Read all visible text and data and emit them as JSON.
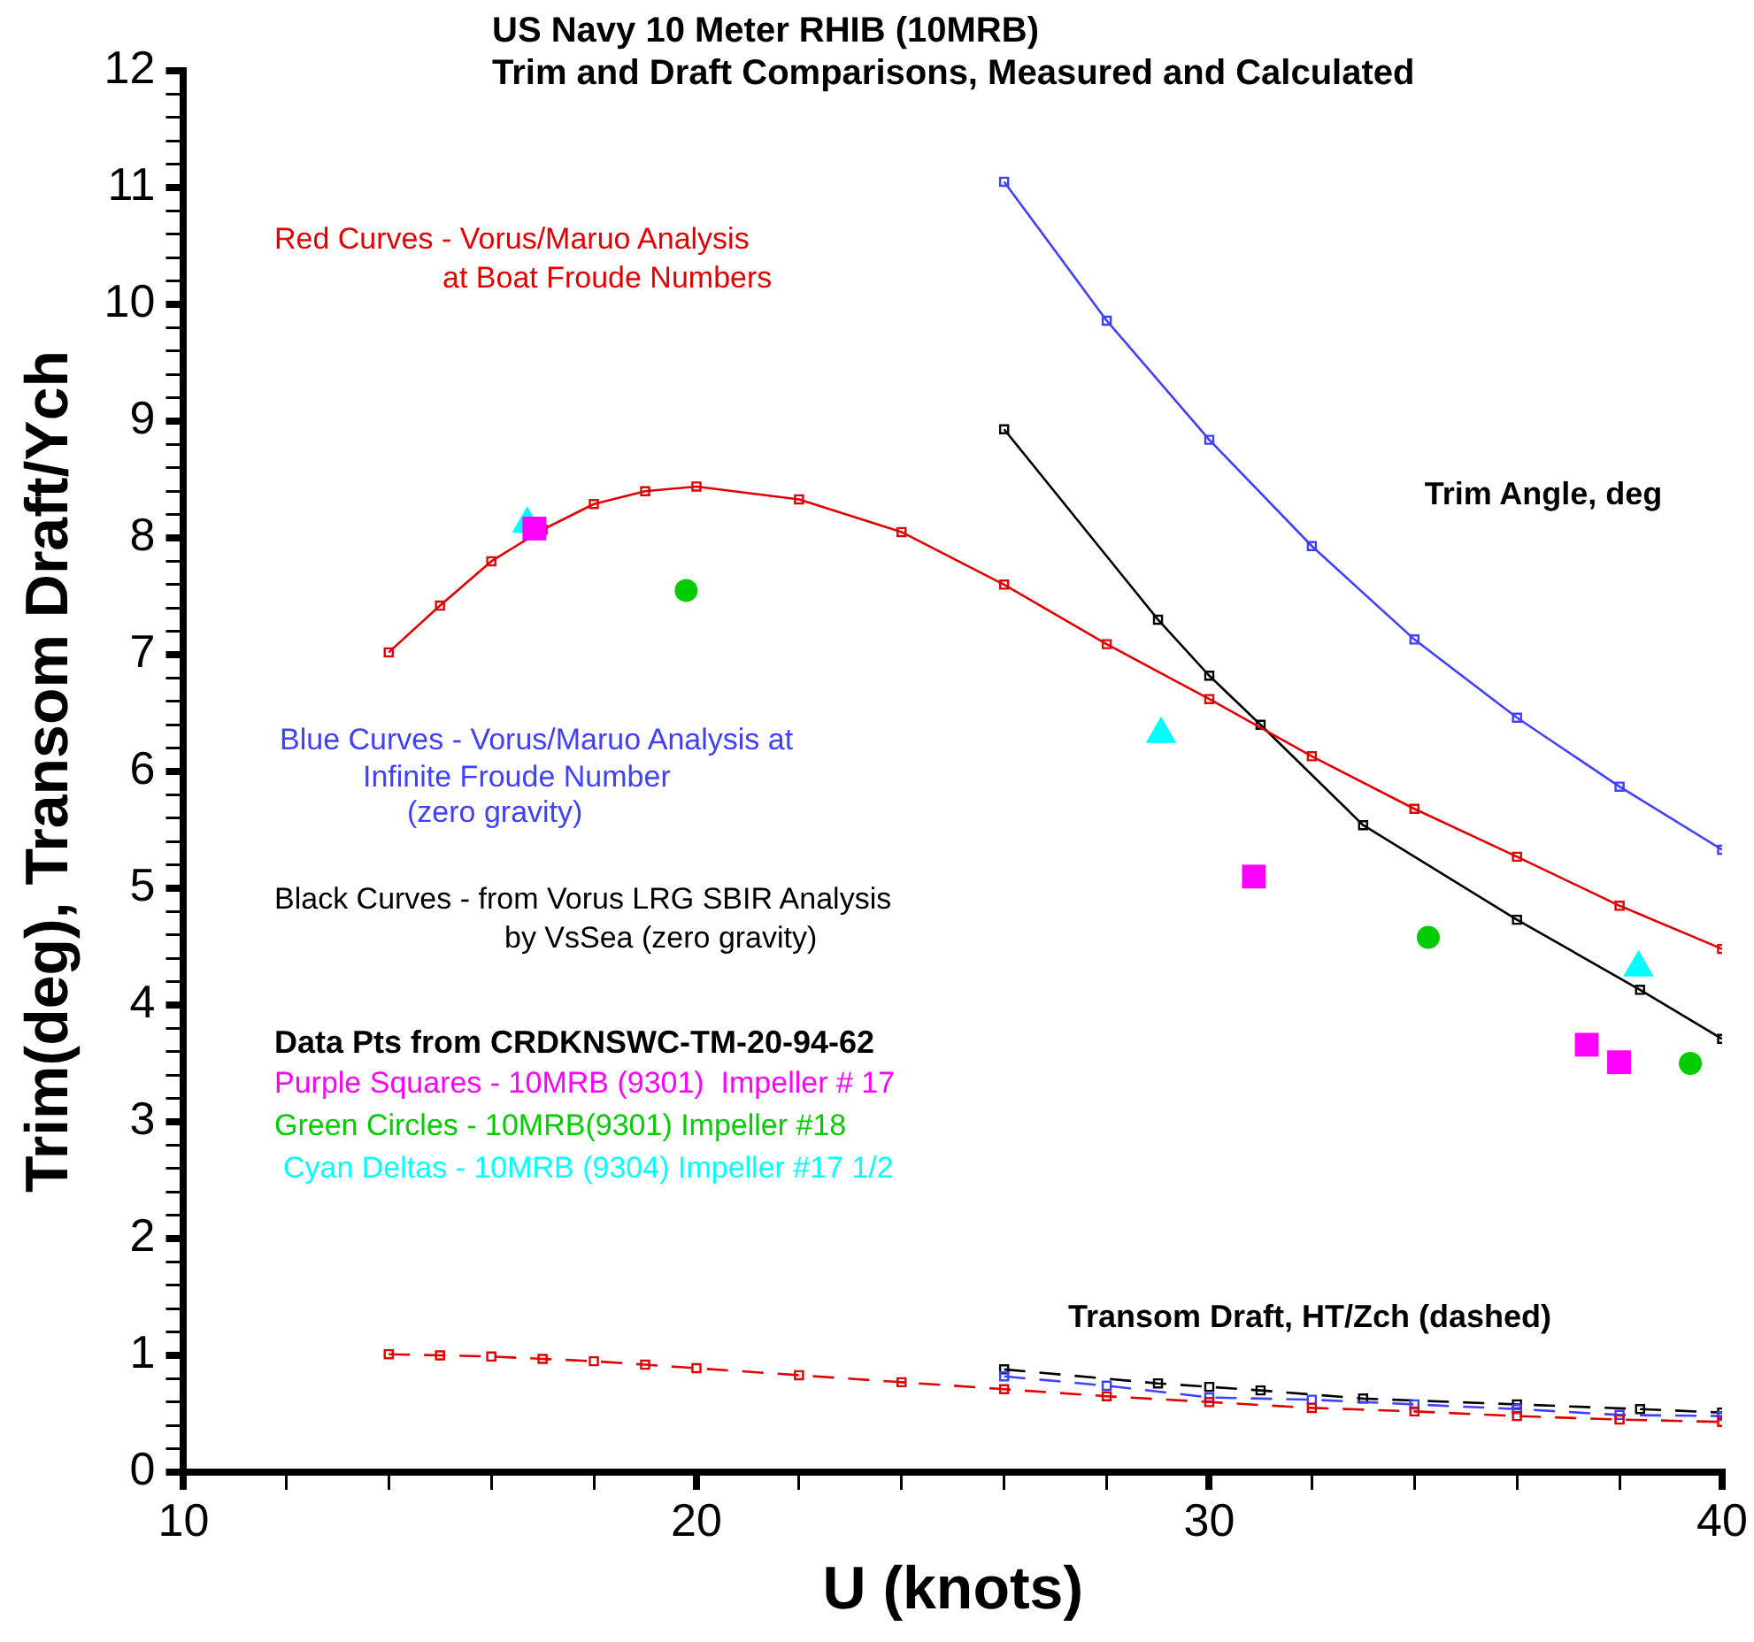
{
  "chart_data": {
    "type": "line",
    "title": "US Navy 10 Meter RHIB (10MRB)",
    "subtitle": "Trim and Draft Comparisons, Measured and Calculated",
    "xlabel": "U (knots)",
    "ylabel": "Trim(deg), Transom Draft/Ych",
    "xlim": [
      10,
      40
    ],
    "xticks": [
      10,
      {
        "value": 12,
        "label": null
      },
      {
        "value": 14,
        "label": null
      },
      {
        "value": 16,
        "label": null
      },
      {
        "value": 18,
        "label": null
      },
      20,
      {
        "value": 22,
        "label": null
      },
      {
        "value": 24,
        "label": null
      },
      {
        "value": 26,
        "label": null
      },
      {
        "value": 28,
        "label": null
      },
      30,
      {
        "value": 32,
        "label": null
      },
      {
        "value": 34,
        "label": null
      },
      {
        "value": 36,
        "label": null
      },
      {
        "value": 38,
        "label": null
      },
      40
    ],
    "ylim": [
      0,
      12
    ],
    "yticks": [
      0,
      {
        "value": 0.2,
        "label": null
      },
      {
        "value": 0.4,
        "label": null
      },
      {
        "value": 0.6,
        "label": null
      },
      {
        "value": 0.8,
        "label": null
      },
      1,
      {
        "value": 1.2,
        "label": null
      },
      {
        "value": 1.4,
        "label": null
      },
      {
        "value": 1.6,
        "label": null
      },
      {
        "value": 1.8,
        "label": null
      },
      2,
      {
        "value": 2.2,
        "label": null
      },
      {
        "value": 2.4,
        "label": null
      },
      {
        "value": 2.6,
        "label": null
      },
      {
        "value": 2.8,
        "label": null
      },
      3,
      {
        "value": 3.2,
        "label": null
      },
      {
        "value": 3.4,
        "label": null
      },
      {
        "value": 3.6,
        "label": null
      },
      {
        "value": 3.8,
        "label": null
      },
      4,
      {
        "value": 4.2,
        "label": null
      },
      {
        "value": 4.4,
        "label": null
      },
      {
        "value": 4.6,
        "label": null
      },
      {
        "value": 4.8,
        "label": null
      },
      5,
      {
        "value": 5.2,
        "label": null
      },
      {
        "value": 5.4,
        "label": null
      },
      {
        "value": 5.6,
        "label": null
      },
      {
        "value": 5.8,
        "label": null
      },
      6,
      {
        "value": 6.2,
        "label": null
      },
      {
        "value": 6.4,
        "label": null
      },
      {
        "value": 6.6,
        "label": null
      },
      {
        "value": 6.8,
        "label": null
      },
      7,
      {
        "value": 7.2,
        "label": null
      },
      {
        "value": 7.4,
        "label": null
      },
      {
        "value": 7.6,
        "label": null
      },
      {
        "value": 7.8,
        "label": null
      },
      8,
      {
        "value": 8.2,
        "label": null
      },
      {
        "value": 8.4,
        "label": null
      },
      {
        "value": 8.6,
        "label": null
      },
      {
        "value": 8.8,
        "label": null
      },
      9,
      {
        "value": 9.2,
        "label": null
      },
      {
        "value": 9.4,
        "label": null
      },
      {
        "value": 9.6,
        "label": null
      },
      {
        "value": 9.8,
        "label": null
      },
      10,
      {
        "value": 10.2,
        "label": null
      },
      {
        "value": 10.4,
        "label": null
      },
      {
        "value": 10.6,
        "label": null
      },
      {
        "value": 10.8,
        "label": null
      },
      11,
      {
        "value": 11.2,
        "label": null
      },
      {
        "value": 11.4,
        "label": null
      },
      {
        "value": 11.6,
        "label": null
      },
      {
        "value": 11.8,
        "label": null
      },
      12
    ],
    "grid": false,
    "legend": false,
    "series": [
      {
        "color": "#e00000",
        "marker": "square",
        "line_style": "solid",
        "x": [
          14,
          15,
          16,
          17,
          18,
          19,
          20,
          22,
          24,
          26,
          28,
          30,
          32,
          34,
          36,
          38,
          40
        ],
        "values": [
          7.02,
          7.42,
          7.8,
          8.07,
          8.29,
          8.4,
          8.44,
          8.33,
          8.05,
          7.6,
          7.09,
          6.62,
          6.13,
          5.68,
          5.27,
          4.85,
          4.48
        ]
      },
      {
        "color": "#4040ff",
        "marker": "square",
        "line_style": "solid",
        "x": [
          26,
          28,
          30,
          32,
          34,
          36,
          38,
          40
        ],
        "values": [
          11.05,
          9.86,
          8.84,
          7.93,
          7.13,
          6.46,
          5.87,
          5.33
        ]
      },
      {
        "color": "#000000",
        "marker": "square",
        "line_style": "solid",
        "x": [
          26,
          29,
          30,
          31,
          33,
          36,
          38.4,
          40
        ],
        "values": [
          8.93,
          7.3,
          6.82,
          6.4,
          5.54,
          4.73,
          4.13,
          3.71
        ]
      },
      {
        "color": "#e00000",
        "marker": "square",
        "line_style": "dashed",
        "x": [
          14,
          15,
          16,
          17,
          18,
          19,
          20,
          22,
          24,
          26,
          28,
          30,
          32,
          34,
          36,
          38,
          40
        ],
        "values": [
          1.01,
          1.0,
          0.99,
          0.97,
          0.95,
          0.92,
          0.89,
          0.83,
          0.77,
          0.71,
          0.65,
          0.6,
          0.55,
          0.52,
          0.48,
          0.45,
          0.43
        ]
      },
      {
        "color": "#4040ff",
        "marker": "square",
        "line_style": "dashed",
        "x": [
          26,
          28,
          30,
          32,
          34,
          36,
          38,
          40
        ],
        "values": [
          0.82,
          0.74,
          0.64,
          0.62,
          0.58,
          0.54,
          0.49,
          0.48
        ]
      },
      {
        "color": "#000000",
        "marker": "square",
        "line_style": "dashed",
        "x": [
          26,
          29,
          30,
          31,
          33,
          36,
          38.4,
          40
        ],
        "values": [
          0.88,
          0.76,
          0.73,
          0.7,
          0.63,
          0.58,
          0.54,
          0.51
        ]
      },
      {
        "type": "scatter",
        "color": "#ff00ff",
        "marker": "square",
        "x": [
          16.84,
          30.87,
          37.36,
          37.99
        ],
        "values": [
          8.08,
          5.1,
          3.66,
          3.51
        ]
      },
      {
        "type": "scatter",
        "color": "#00cc00",
        "marker": "circle",
        "x": [
          19.8,
          34.27,
          39.38
        ],
        "values": [
          7.55,
          4.58,
          3.5
        ]
      },
      {
        "type": "scatter",
        "color": "#00ffff",
        "marker": "triangle",
        "x": [
          16.7,
          29.06,
          38.37
        ],
        "values": [
          8.12,
          6.32,
          4.32
        ]
      }
    ],
    "annotations": [
      "Red Curves - Vorus/Maruo Analysis",
      "at Boat Froude Numbers",
      "Trim Angle, deg",
      "Blue Curves - Vorus/Maruo Analysis at",
      "Infinite Froude Number",
      "(zero gravity)",
      "Black Curves - from Vorus LRG SBIR Analysis",
      "by VsSea (zero gravity)",
      "Data Pts from CRDKNSWC-TM-20-94-62",
      "Purple Squares - 10MRB (9301)  Impeller # 17",
      "Green Circles - 10MRB(9301) Impeller #18",
      "Cyan Deltas - 10MRB (9304) Impeller #17 1/2",
      "Transom Draft, HT/Zch (dashed)"
    ]
  }
}
